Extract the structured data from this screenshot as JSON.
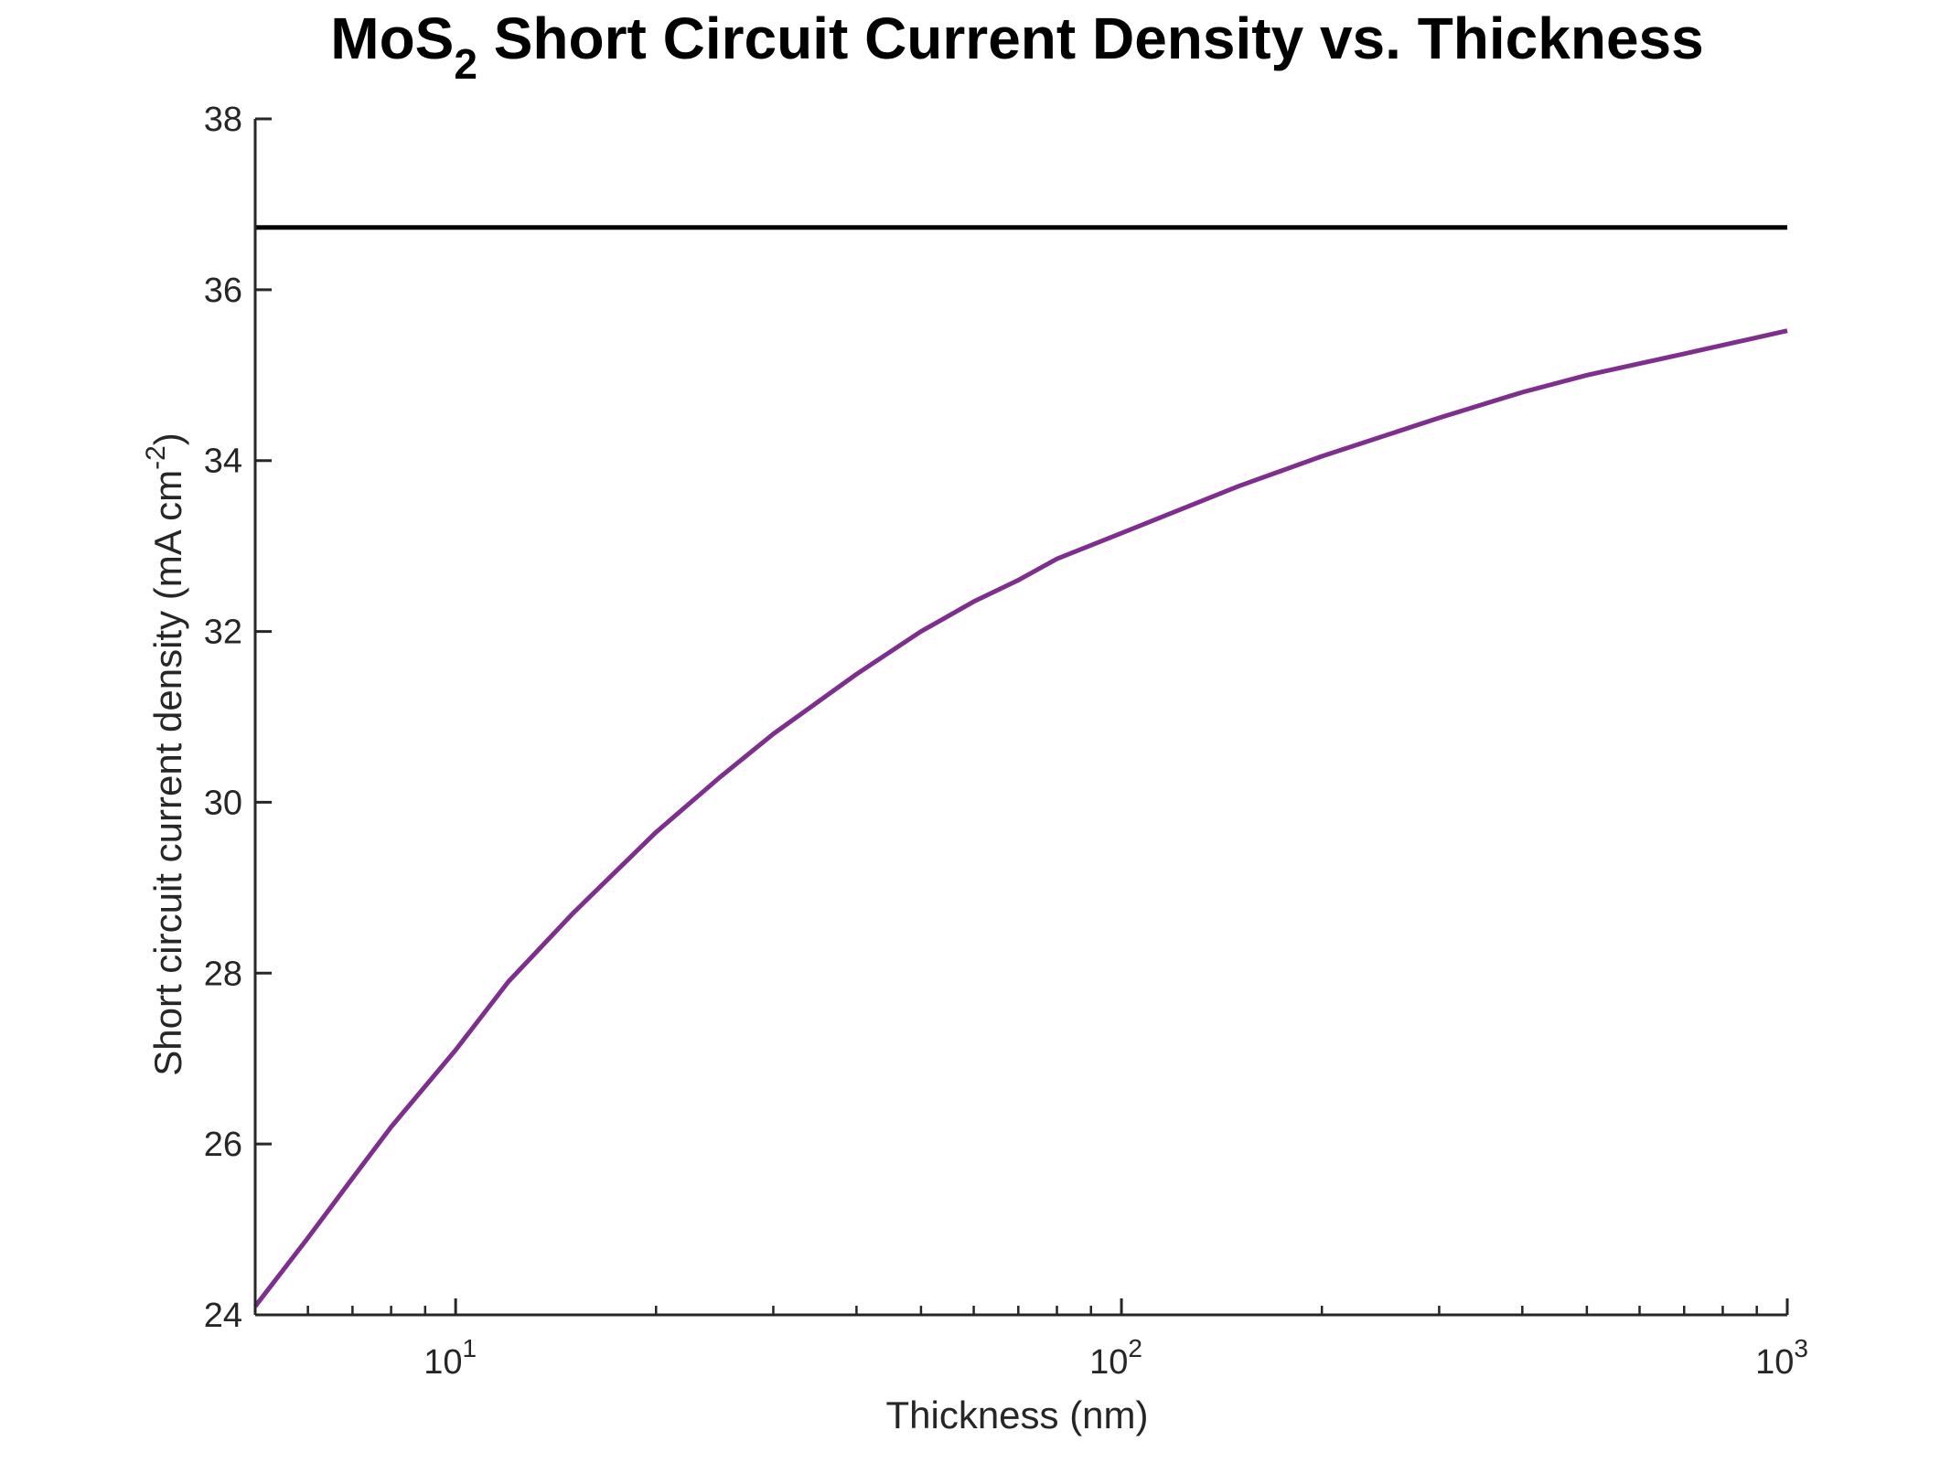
{
  "chart_data": {
    "type": "line",
    "title": {
      "prefix": "MoS",
      "subscript": "2",
      "suffix": " Short Circuit Current Density vs. Thickness"
    },
    "xlabel": "Thickness (nm)",
    "ylabel": {
      "main": "Short circuit current density (mA cm",
      "superscript": "-2",
      "close": ")"
    },
    "x_scale": "log",
    "xlim": [
      5,
      1000
    ],
    "ylim": [
      24,
      38
    ],
    "x_ticks": [
      {
        "value": 10,
        "base": "10",
        "exp": "1"
      },
      {
        "value": 100,
        "base": "10",
        "exp": "2"
      },
      {
        "value": 1000,
        "base": "10",
        "exp": "3"
      }
    ],
    "x_minor_ticks": [
      6,
      7,
      8,
      9,
      20,
      30,
      40,
      50,
      60,
      70,
      80,
      90,
      200,
      300,
      400,
      500,
      600,
      700,
      800,
      900
    ],
    "y_ticks": [
      24,
      26,
      28,
      30,
      32,
      34,
      36,
      38
    ],
    "grid": false,
    "box": false,
    "series": [
      {
        "style": "limit",
        "color": "#000000",
        "x": [
          5,
          1000
        ],
        "y": [
          36.73,
          36.73
        ]
      },
      {
        "style": "curve",
        "color": "#7E2F8E",
        "x": [
          5,
          6,
          7,
          8,
          10,
          12,
          15,
          20,
          25,
          30,
          40,
          50,
          60,
          70,
          80,
          100,
          150,
          200,
          300,
          400,
          500,
          700,
          1000
        ],
        "y": [
          24.1,
          24.9,
          25.6,
          26.2,
          27.1,
          27.9,
          28.7,
          29.65,
          30.3,
          30.8,
          31.5,
          32.0,
          32.35,
          32.6,
          32.85,
          33.15,
          33.7,
          34.05,
          34.5,
          34.8,
          35.0,
          35.25,
          35.52
        ]
      }
    ]
  }
}
